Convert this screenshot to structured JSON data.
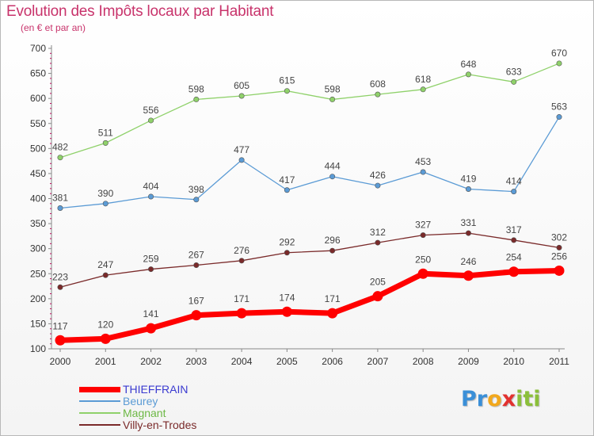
{
  "header": {
    "title": "Evolution des Impôts locaux par Habitant",
    "subtitle": "(en € et par an)"
  },
  "logo": {
    "letters": [
      "P",
      "r",
      "o",
      "x",
      "i",
      "t",
      "i"
    ],
    "colors": [
      "#3a8fd8",
      "#3a8fd8",
      "#f2a81d",
      "#e2312f",
      "#8bbf3a",
      "#8bbf3a",
      "#8bbf3a"
    ]
  },
  "chart_data": {
    "type": "line",
    "title": "Evolution des Impôts locaux par Habitant",
    "subtitle": "(en € et par an)",
    "xlabel": "",
    "ylabel": "",
    "x": [
      "2000",
      "2001",
      "2002",
      "2003",
      "2004",
      "2005",
      "2006",
      "2007",
      "2008",
      "2009",
      "2010",
      "2011"
    ],
    "ylim": [
      100,
      700
    ],
    "yticks": [
      "100",
      "150",
      "200",
      "250",
      "300",
      "350",
      "400",
      "450",
      "500",
      "550",
      "600",
      "650",
      "700"
    ],
    "grid": false,
    "legend_position": "bottom-left",
    "series": [
      {
        "name": "THIEFFRAIN",
        "values": [
          117,
          120,
          141,
          167,
          171,
          174,
          171,
          205,
          250,
          246,
          254,
          256
        ],
        "color": "#ff0000",
        "label_color": "#444444"
      },
      {
        "name": "Beurey",
        "values": [
          381,
          390,
          404,
          398,
          477,
          417,
          444,
          426,
          453,
          419,
          414,
          563
        ],
        "color": "#5b9bd5",
        "label_color": "#444444"
      },
      {
        "name": "Magnant",
        "values": [
          482,
          511,
          556,
          598,
          605,
          615,
          598,
          608,
          618,
          648,
          633,
          670
        ],
        "color": "#8fd16a",
        "label_color": "#444444"
      },
      {
        "name": "Villy-en-Trodes",
        "values": [
          223,
          247,
          259,
          267,
          276,
          292,
          296,
          312,
          327,
          331,
          317,
          302
        ],
        "color": "#7a2a2a",
        "label_color": "#444444"
      }
    ]
  }
}
